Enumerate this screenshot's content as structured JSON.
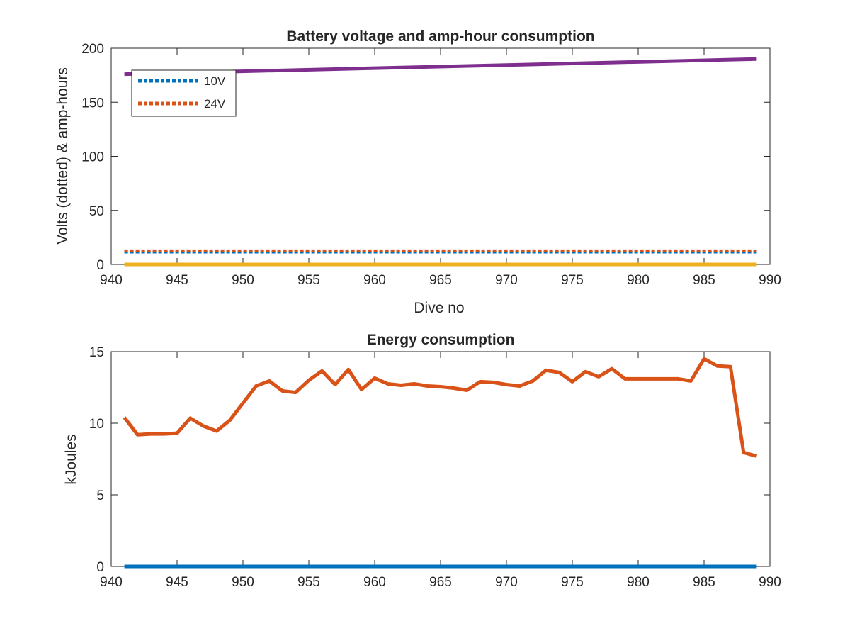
{
  "chart_data": [
    {
      "type": "line",
      "title": "Battery voltage and amp-hour consumption",
      "xlabel": "Dive no",
      "ylabel": "Volts (dotted) & amp-hours",
      "xlim": [
        940,
        990
      ],
      "ylim": [
        0,
        200
      ],
      "xticks": [
        "940",
        "945",
        "950",
        "955",
        "960",
        "965",
        "970",
        "975",
        "980",
        "985",
        "990"
      ],
      "yticks": [
        "0",
        "50",
        "100",
        "150",
        "200"
      ],
      "grid": false,
      "legend_position": "top-left",
      "x": [
        941,
        989
      ],
      "series": [
        {
          "name": "10V",
          "style": "dotted",
          "color": "#0072BD",
          "values": [
            11.5,
            11.5
          ]
        },
        {
          "name": "24V",
          "style": "dotted",
          "color": "#D95319",
          "values": [
            12.5,
            12.5
          ]
        },
        {
          "style": "solid",
          "color": "#EDB120",
          "values": [
            0,
            0
          ]
        },
        {
          "style": "solid",
          "color": "#7E2F8E",
          "values": [
            176,
            190
          ]
        }
      ]
    },
    {
      "type": "line",
      "title": "Energy consumption",
      "xlabel": "",
      "ylabel": "kJoules",
      "xlim": [
        940,
        990
      ],
      "ylim": [
        0,
        15
      ],
      "xticks": [
        "940",
        "945",
        "950",
        "955",
        "960",
        "965",
        "970",
        "975",
        "980",
        "985",
        "990"
      ],
      "yticks": [
        "0",
        "5",
        "10",
        "15"
      ],
      "grid": false,
      "x": [
        941,
        942,
        943,
        944,
        945,
        946,
        947,
        948,
        949,
        950,
        951,
        952,
        953,
        954,
        955,
        956,
        957,
        958,
        959,
        960,
        961,
        962,
        963,
        964,
        965,
        966,
        967,
        968,
        969,
        970,
        971,
        972,
        973,
        974,
        975,
        976,
        977,
        978,
        979,
        980,
        981,
        982,
        983,
        984,
        985,
        986,
        987,
        988,
        989
      ],
      "series": [
        {
          "style": "solid",
          "color": "#0072BD",
          "values": [
            0,
            0,
            0,
            0,
            0,
            0,
            0,
            0,
            0,
            0,
            0,
            0,
            0,
            0,
            0,
            0,
            0,
            0,
            0,
            0,
            0,
            0,
            0,
            0,
            0,
            0,
            0,
            0,
            0,
            0,
            0,
            0,
            0,
            0,
            0,
            0,
            0,
            0,
            0,
            0,
            0,
            0,
            0,
            0,
            0,
            0,
            0,
            0,
            0
          ]
        },
        {
          "style": "solid",
          "color": "#D95319",
          "values": [
            10.4,
            9.2,
            9.25,
            9.25,
            9.3,
            10.35,
            9.8,
            9.45,
            10.2,
            11.4,
            12.6,
            12.95,
            12.25,
            12.15,
            13.0,
            13.65,
            12.7,
            13.75,
            12.35,
            13.15,
            12.75,
            12.65,
            12.75,
            12.6,
            12.55,
            12.45,
            12.3,
            12.9,
            12.85,
            12.7,
            12.6,
            12.95,
            13.7,
            13.55,
            12.9,
            13.6,
            13.25,
            13.8,
            13.1,
            13.1,
            13.1,
            13.1,
            13.1,
            12.95,
            14.5,
            14.0,
            13.95,
            7.95,
            7.7
          ]
        }
      ]
    }
  ]
}
